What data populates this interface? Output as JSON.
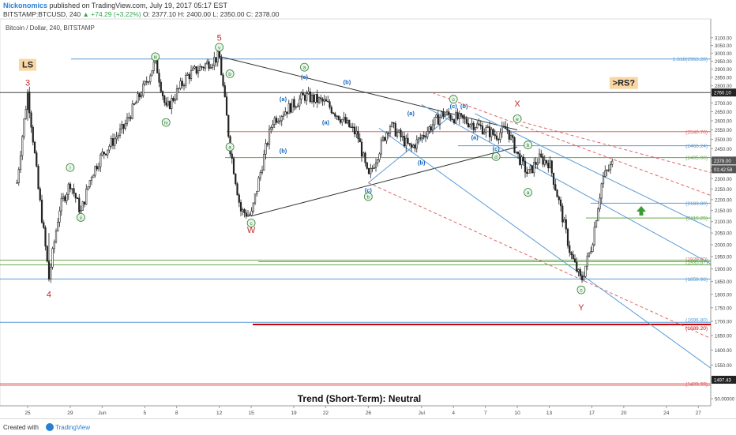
{
  "header": {
    "author": "Nickonomics",
    "published": "published on TradingView.com, July 19, 2017 05:17 EST",
    "symbol": "BITSTAMP:BTCUSD, 240",
    "change": "+74.29 (+3.22%)",
    "ohlc": "O: 2377.10 H: 2400.00 L: 2350.00 C: 2378.00",
    "chart_label": "Bitcoin / Dollar, 240, BITSTAMP"
  },
  "footer": {
    "created_with": "Created with",
    "brand": "TradingView"
  },
  "colors": {
    "accent": "#2a7fd4",
    "up": "#2ea84a",
    "wave_red": "#c62828",
    "wave_green": "#2e7d32",
    "wave_blue": "#1565c0",
    "candle": "#222222",
    "label_bg": "#f8d7a4"
  },
  "chart_data": {
    "type": "candlestick",
    "y_axis": {
      "range": [
        1480,
        3140
      ],
      "scale": "log",
      "position": "right",
      "ticks": [
        "3100.00",
        "3050.00",
        "3000.00",
        "2950.00",
        "2900.00",
        "2850.00",
        "2800.00",
        "2750.00",
        "2700.00",
        "2650.00",
        "2600.00",
        "2550.00",
        "2500.00",
        "2450.00",
        "2400.00",
        "2350.00",
        "2300.00",
        "2250.00",
        "2200.00",
        "2150.00",
        "2100.00",
        "2050.00",
        "2000.00",
        "1950.00",
        "1900.00",
        "1850.00",
        "1800.00",
        "1750.00",
        "1700.00",
        "1650.00",
        "1600.00",
        "1550.00",
        "1500.00",
        "50.00000"
      ]
    },
    "x_axis": {
      "ticks": [
        "25",
        "29",
        "Jun",
        "5",
        "8",
        "12",
        "15",
        "19",
        "22",
        "26",
        "Jul",
        "4",
        "7",
        "10",
        "13",
        "17",
        "20",
        "24",
        "27"
      ]
    },
    "price_badges": {
      "line": "2760.10",
      "last": "2378.00",
      "countdown": "01:42:58",
      "bottom": "1497.43"
    },
    "price_path": [
      {
        "date": "May 24",
        "price": 2280
      },
      {
        "date": "May 25",
        "price": 2760
      },
      {
        "date": "May 26",
        "price": 2250
      },
      {
        "date": "May 27",
        "price": 1860
      },
      {
        "date": "May 28",
        "price": 2160
      },
      {
        "date": "May 29",
        "price": 2280
      },
      {
        "date": "May 30",
        "price": 2140
      },
      {
        "date": "May 31",
        "price": 2320
      },
      {
        "date": "Jun 1",
        "price": 2420
      },
      {
        "date": "Jun 3",
        "price": 2560
      },
      {
        "date": "Jun 5",
        "price": 2800
      },
      {
        "date": "Jun 6",
        "price": 2950
      },
      {
        "date": "Jun 7",
        "price": 2660
      },
      {
        "date": "Jun 9",
        "price": 2860
      },
      {
        "date": "Jun 11",
        "price": 2940
      },
      {
        "date": "Jun 12",
        "price": 2980
      },
      {
        "date": "Jun 13",
        "price": 2460
      },
      {
        "date": "Jun 14",
        "price": 2150
      },
      {
        "date": "Jun 15",
        "price": 2125
      },
      {
        "date": "Jun 17",
        "price": 2600
      },
      {
        "date": "Jun 20",
        "price": 2740
      },
      {
        "date": "Jun 22",
        "price": 2700
      },
      {
        "date": "Jun 25",
        "price": 2520
      },
      {
        "date": "Jun 26",
        "price": 2300
      },
      {
        "date": "Jun 28",
        "price": 2580
      },
      {
        "date": "Jun 30",
        "price": 2450
      },
      {
        "date": "Jul 3",
        "price": 2640
      },
      {
        "date": "Jul 4",
        "price": 2620
      },
      {
        "date": "Jul 6",
        "price": 2580
      },
      {
        "date": "Jul 8",
        "price": 2520
      },
      {
        "date": "Jul 9",
        "price": 2560
      },
      {
        "date": "Jul 10",
        "price": 2420
      },
      {
        "date": "Jul 11",
        "price": 2320
      },
      {
        "date": "Jul 12",
        "price": 2400
      },
      {
        "date": "Jul 13",
        "price": 2380
      },
      {
        "date": "Jul 15",
        "price": 1960
      },
      {
        "date": "Jul 16",
        "price": 1850
      },
      {
        "date": "Jul 17",
        "price": 2000
      },
      {
        "date": "Jul 18",
        "price": 2300
      },
      {
        "date": "Jul 19",
        "price": 2378
      }
    ],
    "levels": [
      {
        "price": 2963.28,
        "label": "1.618(2963.28)",
        "color": "#5b9bd5"
      },
      {
        "price": 2760.1,
        "label": "",
        "color": "#444444"
      },
      {
        "price": 2540.7,
        "label": "(2540.70)",
        "color": "#e06666"
      },
      {
        "price": 2466.24,
        "label": "(2466.24)",
        "color": "#5b9bd5"
      },
      {
        "price": 2405.0,
        "label": "(2405.00)",
        "color": "#6aa84f"
      },
      {
        "price": 2183.8,
        "label": "(2183.80)",
        "color": "#5b9bd5"
      },
      {
        "price": 2116.25,
        "label": "(2116.25)",
        "color": "#6aa84f"
      },
      {
        "price": 1929.0,
        "label": "(1929.00)",
        "color": "#e06666"
      },
      {
        "price": 1935.67,
        "label": "(1935.67)",
        "color": "#6aa84f"
      },
      {
        "price": 1859.96,
        "label": "(1859.96)",
        "color": "#5b9bd5"
      },
      {
        "price": 1696.8,
        "label": "(1696.80)",
        "color": "#5b9bd5"
      },
      {
        "price": 1689.2,
        "label": "(1689.20)",
        "color": "#cc0000"
      },
      {
        "price": 1489.99,
        "label": "(1489.99)",
        "color": "#e06666"
      }
    ],
    "wave_labels": [
      {
        "text": "LS",
        "date": "May 25",
        "price": 2910,
        "style": "box"
      },
      {
        "text": "3",
        "date": "May 25",
        "price": 2800,
        "style": "red"
      },
      {
        "text": "4",
        "date": "May 27",
        "price": 1790,
        "style": "red"
      },
      {
        "text": "5",
        "date": "Jun 12",
        "price": 3080,
        "style": "red"
      },
      {
        "text": "W",
        "date": "Jun 15",
        "price": 2050,
        "style": "red"
      },
      {
        "text": "X",
        "date": "Jul 10",
        "price": 2680,
        "style": "red"
      },
      {
        "text": "Y",
        "date": "Jul 16",
        "price": 1740,
        "style": "red"
      },
      {
        "text": ">RS?",
        "date": "Jul 20",
        "price": 2800,
        "style": "box"
      },
      {
        "text": "i",
        "date": "May 29",
        "price": 2345,
        "style": "circle-green"
      },
      {
        "text": "ii",
        "date": "May 30",
        "price": 2110,
        "style": "circle-green"
      },
      {
        "text": "iii",
        "date": "Jun 6",
        "price": 2965,
        "style": "circle-green"
      },
      {
        "text": "iv",
        "date": "Jun 7",
        "price": 2580,
        "style": "circle-green"
      },
      {
        "text": "v",
        "date": "Jun 12",
        "price": 3025,
        "style": "circle-green"
      },
      {
        "text": "b",
        "date": "Jun 13",
        "price": 2860,
        "style": "circle-green"
      },
      {
        "text": "a",
        "date": "Jun 13",
        "price": 2450,
        "style": "circle-green"
      },
      {
        "text": "c",
        "date": "Jun 15",
        "price": 2085,
        "style": "circle-green"
      },
      {
        "text": "(a)",
        "date": "Jun 18",
        "price": 2710,
        "style": "blue"
      },
      {
        "text": "(b)",
        "date": "Jun 18",
        "price": 2430,
        "style": "blue"
      },
      {
        "text": "(c)",
        "date": "Jun 20",
        "price": 2840,
        "style": "blue"
      },
      {
        "text": "(a)",
        "date": "Jun 22",
        "price": 2580,
        "style": "blue"
      },
      {
        "text": "(b)",
        "date": "Jun 24",
        "price": 2810,
        "style": "blue"
      },
      {
        "text": "a",
        "date": "Jun 20",
        "price": 2900,
        "style": "circle-green"
      },
      {
        "text": "(c)",
        "date": "Jun 26",
        "price": 2235,
        "style": "blue"
      },
      {
        "text": "b",
        "date": "Jun 26",
        "price": 2205,
        "style": "circle-green"
      },
      {
        "text": "(a)",
        "date": "Jun 30",
        "price": 2630,
        "style": "blue"
      },
      {
        "text": "(b)",
        "date": "Jul 1",
        "price": 2370,
        "style": "blue"
      },
      {
        "text": "c",
        "date": "Jul 4",
        "price": 2710,
        "style": "circle-green"
      },
      {
        "text": "(c)",
        "date": "Jul 4",
        "price": 2670,
        "style": "blue"
      },
      {
        "text": "(b)",
        "date": "Jul 5",
        "price": 2670,
        "style": "blue"
      },
      {
        "text": "(a)",
        "date": "Jul 6",
        "price": 2500,
        "style": "blue"
      },
      {
        "text": "(c)",
        "date": "Jul 8",
        "price": 2440,
        "style": "blue"
      },
      {
        "text": "d",
        "date": "Jul 8",
        "price": 2400,
        "style": "circle-green"
      },
      {
        "text": "e",
        "date": "Jul 10",
        "price": 2600,
        "style": "circle-green"
      },
      {
        "text": "b",
        "date": "Jul 11",
        "price": 2460,
        "style": "circle-green"
      },
      {
        "text": "a",
        "date": "Jul 11",
        "price": 2225,
        "style": "circle-green"
      },
      {
        "text": "c",
        "date": "Jul 16",
        "price": 1810,
        "style": "circle-green"
      }
    ],
    "trend_caption": "Trend (Short-Term): Neutral"
  }
}
